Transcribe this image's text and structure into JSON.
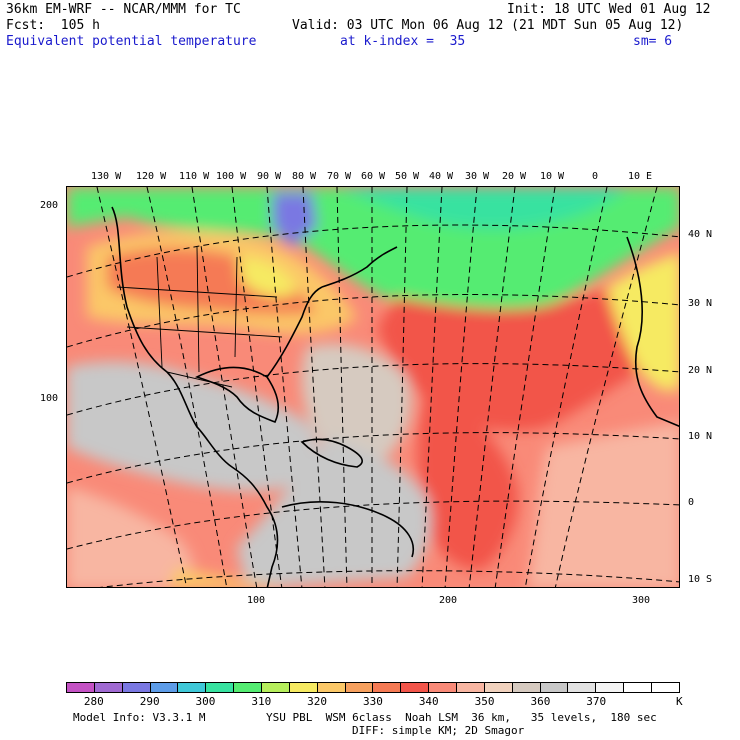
{
  "header": {
    "model_title": "36km EM-WRF -- NCAR/MMM for TC",
    "init": "Init: 18 UTC Wed 01 Aug 12",
    "forecast": "Fcst:  105 h",
    "valid": "Valid: 03 UTC Mon 06 Aug 12 (21 MDT Sun 05 Aug 12)",
    "field_name": "Equivalent potential temperature",
    "level": "at k-index =  35",
    "smoothing": "sm= 6"
  },
  "map": {
    "top_lon_labels": [
      "130 W",
      "120 W",
      "110 W",
      "100 W",
      "90 W",
      "80 W",
      "70 W",
      "60 W",
      "50 W",
      "40 W",
      "30 W",
      "20 W",
      "10 W",
      "0",
      "10 E"
    ],
    "right_lat_labels": [
      "40 N",
      "30 N",
      "20 N",
      "10 N",
      "0",
      "10 S"
    ],
    "left_grid_labels": [
      "200",
      "100"
    ],
    "bottom_grid_labels": [
      "100",
      "200",
      "300"
    ]
  },
  "colorbar": {
    "colors": [
      "#c452c4",
      "#a06ad2",
      "#7a78e2",
      "#5d9ce8",
      "#3fc8d8",
      "#37e2a0",
      "#54ec72",
      "#b6ee5c",
      "#f6ea62",
      "#fbc868",
      "#f6a05e",
      "#f57a54",
      "#f2554a",
      "#f98a78",
      "#f8b6a2",
      "#f1d2be",
      "#d6cac0",
      "#c8c8c8",
      "#e2e2e2",
      "#f4f4f4",
      "#ffffff",
      "#ffffff"
    ],
    "labels": [
      "280",
      "290",
      "300",
      "310",
      "320",
      "330",
      "340",
      "350",
      "360",
      "370"
    ],
    "unit": "K"
  },
  "footer": {
    "line1_left": "Model Info: V3.3.1 M",
    "line1_right": "YSU PBL  WSM 6class  Noah LSM  36 km,   35 levels,  180 sec",
    "line2": "DIFF: simple KM; 2D Smagor"
  }
}
